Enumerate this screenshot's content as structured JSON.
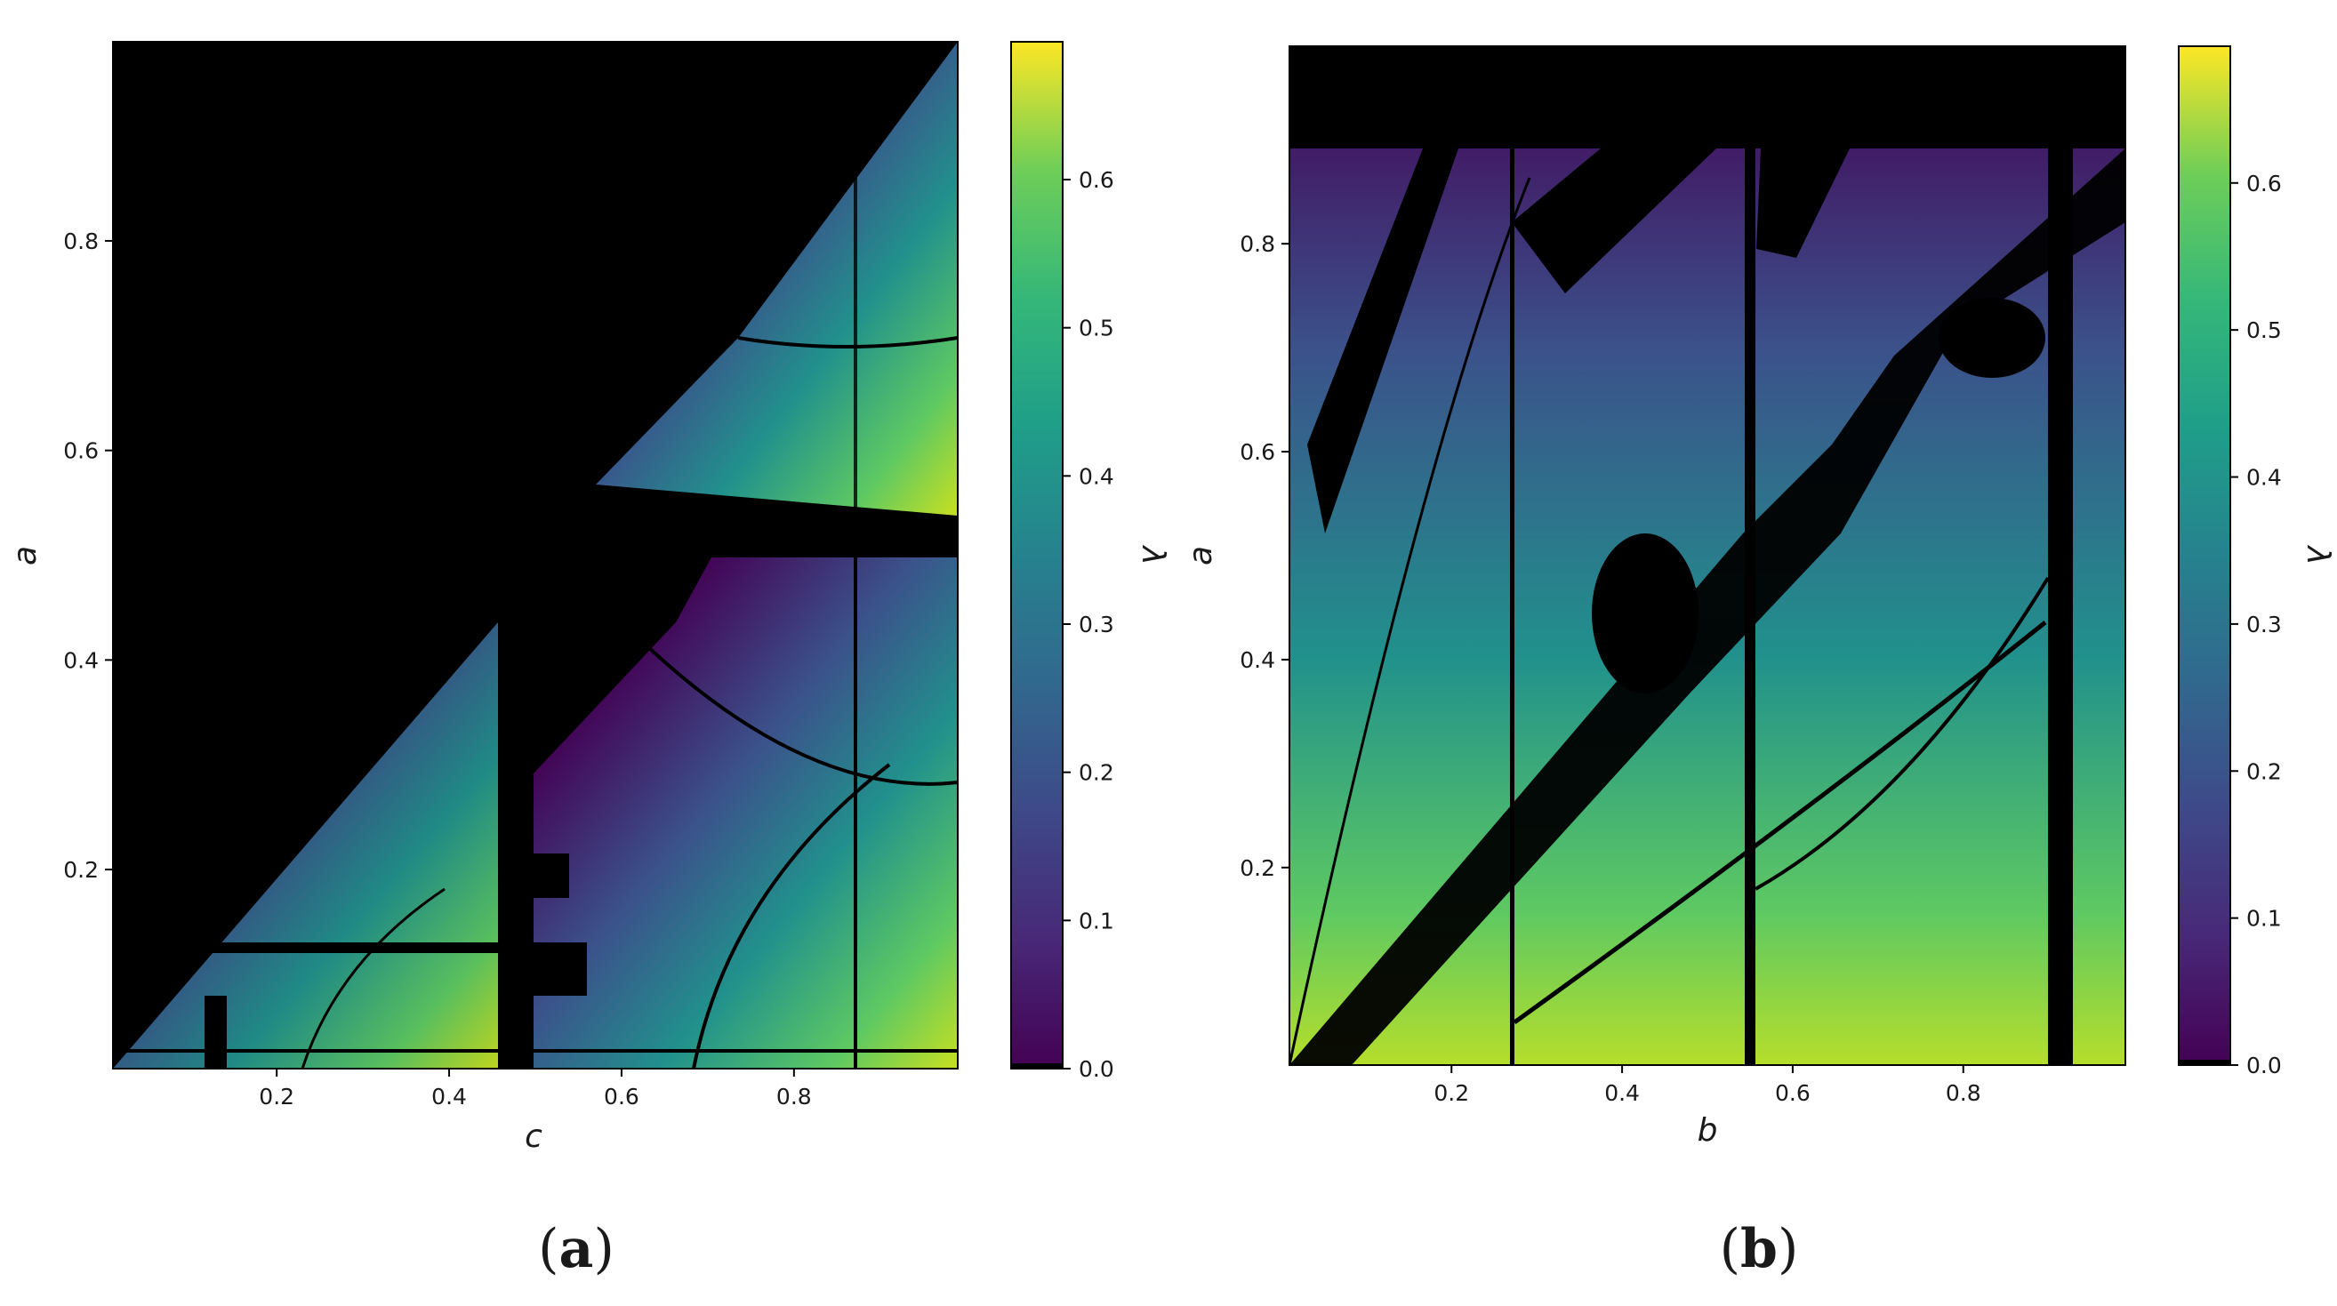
{
  "chart_data": [
    {
      "type": "heatmap",
      "panel_label": "a",
      "xlabel": "c",
      "ylabel": "a",
      "colorbar_label": "λ",
      "x_ticks": [
        0.2,
        0.4,
        0.6,
        0.8
      ],
      "y_ticks": [
        0.2,
        0.4,
        0.6,
        0.8
      ],
      "xlim": [
        0.01,
        0.99
      ],
      "ylim": [
        0.01,
        0.99
      ],
      "colorbar_ticks": [
        0.0,
        0.1,
        0.2,
        0.3,
        0.4,
        0.5,
        0.6
      ],
      "colorbar_range": [
        0.0,
        0.693
      ],
      "colormap": [
        "#000000",
        "#440154",
        "#3b528b",
        "#21918c",
        "#5ec962",
        "#fde725"
      ],
      "description_regions": {
        "black_zero_region": "upper-left triangle above diagonal a≈c, plus bands near a≈0.53 and c≈0.47",
        "max_lambda_region": "bottom-right corner near c≈1, a≈0"
      }
    },
    {
      "type": "heatmap",
      "panel_label": "b",
      "xlabel": "b",
      "ylabel": "a",
      "colorbar_label": "λ",
      "x_ticks": [
        0.2,
        0.4,
        0.6,
        0.8
      ],
      "y_ticks": [
        0.2,
        0.4,
        0.6,
        0.8
      ],
      "xlim": [
        0.01,
        0.99
      ],
      "ylim": [
        0.01,
        0.99
      ],
      "colorbar_ticks": [
        0.0,
        0.1,
        0.2,
        0.3,
        0.4,
        0.5,
        0.6
      ],
      "colorbar_range": [
        0.0,
        0.693
      ],
      "colormap": [
        "#000000",
        "#440154",
        "#3b528b",
        "#21918c",
        "#5ec962",
        "#fde725"
      ],
      "description_regions": {
        "black_zero_region": "top band a>0.9, vertical lines near b≈0.27, 0.55, 0.91, diagonal stripes",
        "max_lambda_region": "bottom band near a≈0"
      }
    }
  ]
}
